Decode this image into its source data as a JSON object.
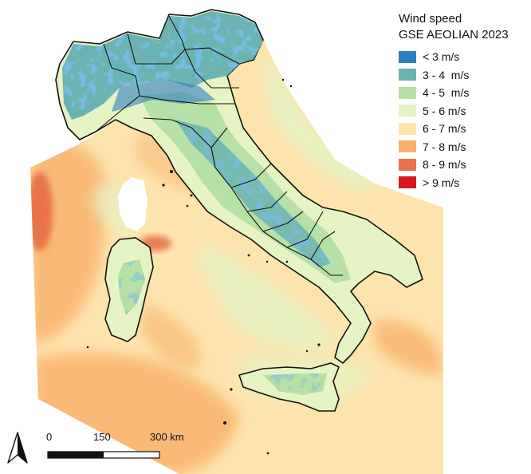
{
  "legend": {
    "title_line1": "Wind speed",
    "title_line2": "GSE AEOLIAN 2023",
    "classes": [
      {
        "label": "< 3 m/s",
        "color": "#2f7fc0"
      },
      {
        "label": "3 - 4  m/s",
        "color": "#6bb3b0"
      },
      {
        "label": "4 - 5  m/s",
        "color": "#b7e0a6"
      },
      {
        "label": "5 - 6 m/s",
        "color": "#e6f3c4"
      },
      {
        "label": "6 - 7 m/s",
        "color": "#fde4ad"
      },
      {
        "label": "7 - 8 m/s",
        "color": "#f8b26e"
      },
      {
        "label": "8 - 9 m/s",
        "color": "#e8734a"
      },
      {
        "label": "> 9 m/s",
        "color": "#d7191c"
      }
    ]
  },
  "scale_bar": {
    "ticks": [
      "0",
      "150",
      "300 km"
    ]
  },
  "north_arrow": {
    "icon": "north-arrow-icon"
  }
}
